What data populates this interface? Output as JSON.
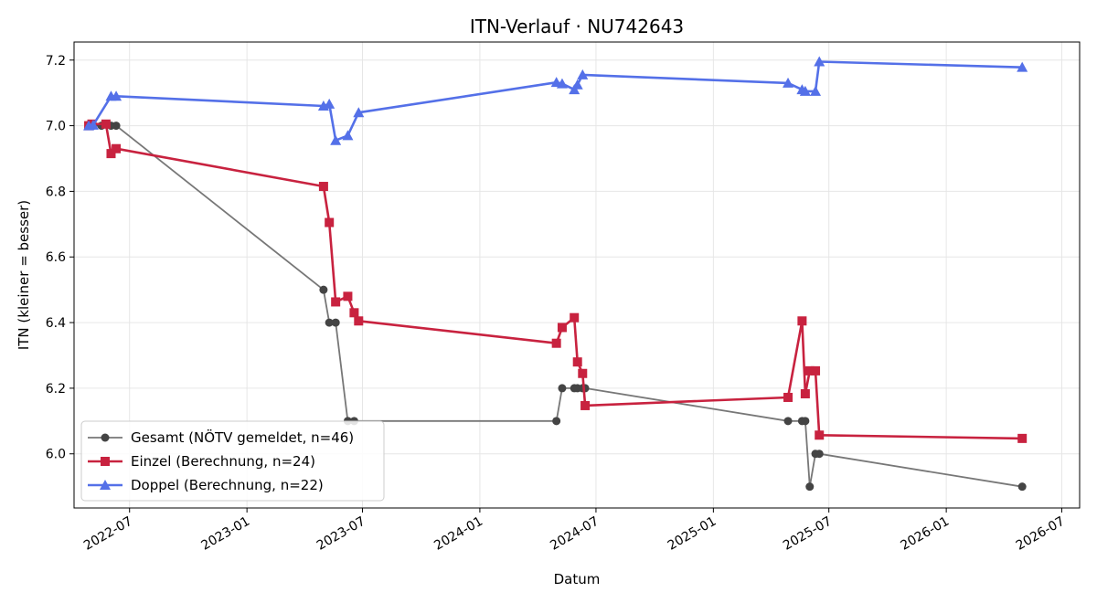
{
  "chart_data": {
    "type": "line",
    "title": "ITN-Verlauf · NU742643",
    "xlabel": "Datum",
    "ylabel": "ITN  (kleiner = besser)",
    "x_ticks": [
      "2022-07",
      "2023-01",
      "2023-07",
      "2024-01",
      "2024-07",
      "2025-01",
      "2025-07",
      "2026-01",
      "2026-07"
    ],
    "y_ticks": [
      "6.0",
      "6.2",
      "6.4",
      "6.6",
      "6.8",
      "7.0",
      "7.2"
    ],
    "xlim": [
      "2022-04-05",
      "2026-07-29"
    ],
    "ylim": [
      5.835,
      7.255
    ],
    "grid": true,
    "legend_position": "lower-left",
    "series": [
      {
        "name": "Gesamt (NÖTV gemeldet, n=46)",
        "color": "#777777",
        "marker_color": "#444444",
        "marker": "circle",
        "points": [
          [
            "2022-05-01",
            7.0
          ],
          [
            "2022-05-05",
            7.0
          ],
          [
            "2022-05-18",
            7.0
          ],
          [
            "2022-06-02",
            7.0
          ],
          [
            "2022-06-10",
            7.0
          ],
          [
            "2023-05-01",
            6.5
          ],
          [
            "2023-05-10",
            6.4
          ],
          [
            "2023-05-20",
            6.4
          ],
          [
            "2023-06-08",
            6.1
          ],
          [
            "2023-06-18",
            6.1
          ],
          [
            "2024-04-30",
            6.1
          ],
          [
            "2024-05-09",
            6.2
          ],
          [
            "2024-05-28",
            6.2
          ],
          [
            "2024-06-02",
            6.2
          ],
          [
            "2024-06-10",
            6.2
          ],
          [
            "2024-06-14",
            6.2
          ],
          [
            "2025-04-28",
            6.1
          ],
          [
            "2025-05-20",
            6.1
          ],
          [
            "2025-05-25",
            6.1
          ],
          [
            "2025-06-01",
            5.9
          ],
          [
            "2025-06-10",
            6.0
          ],
          [
            "2025-06-16",
            6.0
          ],
          [
            "2026-04-30",
            5.9
          ]
        ]
      },
      {
        "name": "Einzel (Berechnung, n=24)",
        "color": "#c8223f",
        "marker": "square",
        "points": [
          [
            "2022-04-28",
            7.0
          ],
          [
            "2022-05-03",
            7.005
          ],
          [
            "2022-05-25",
            7.005
          ],
          [
            "2022-06-02",
            6.915
          ],
          [
            "2022-06-10",
            6.93
          ],
          [
            "2023-05-01",
            6.815
          ],
          [
            "2023-05-10",
            6.705
          ],
          [
            "2023-05-20",
            6.463
          ],
          [
            "2023-06-08",
            6.48
          ],
          [
            "2023-06-18",
            6.43
          ],
          [
            "2023-06-25",
            6.405
          ],
          [
            "2024-04-30",
            6.337
          ],
          [
            "2024-05-09",
            6.385
          ],
          [
            "2024-05-28",
            6.415
          ],
          [
            "2024-06-02",
            6.28
          ],
          [
            "2024-06-10",
            6.245
          ],
          [
            "2024-06-14",
            6.147
          ],
          [
            "2025-04-28",
            6.172
          ],
          [
            "2025-05-20",
            6.405
          ],
          [
            "2025-05-25",
            6.183
          ],
          [
            "2025-06-01",
            6.253
          ],
          [
            "2025-06-10",
            6.253
          ],
          [
            "2025-06-16",
            6.057
          ],
          [
            "2026-04-30",
            6.047
          ]
        ]
      },
      {
        "name": "Doppel (Berechnung, n=22)",
        "color": "#5470e8",
        "marker": "triangle",
        "points": [
          [
            "2022-04-28",
            7.0
          ],
          [
            "2022-05-05",
            7.002
          ],
          [
            "2022-06-02",
            7.09
          ],
          [
            "2022-06-10",
            7.09
          ],
          [
            "2023-05-01",
            7.06
          ],
          [
            "2023-05-10",
            7.066
          ],
          [
            "2023-05-20",
            6.955
          ],
          [
            "2023-06-08",
            6.97
          ],
          [
            "2023-06-25",
            7.04
          ],
          [
            "2024-04-30",
            7.132
          ],
          [
            "2024-05-09",
            7.128
          ],
          [
            "2024-05-28",
            7.11
          ],
          [
            "2024-06-02",
            7.125
          ],
          [
            "2024-06-10",
            7.155
          ],
          [
            "2025-04-28",
            7.13
          ],
          [
            "2025-05-20",
            7.11
          ],
          [
            "2025-05-25",
            7.105
          ],
          [
            "2025-06-10",
            7.105
          ],
          [
            "2025-06-16",
            7.195
          ],
          [
            "2026-04-30",
            7.178
          ]
        ]
      }
    ]
  }
}
